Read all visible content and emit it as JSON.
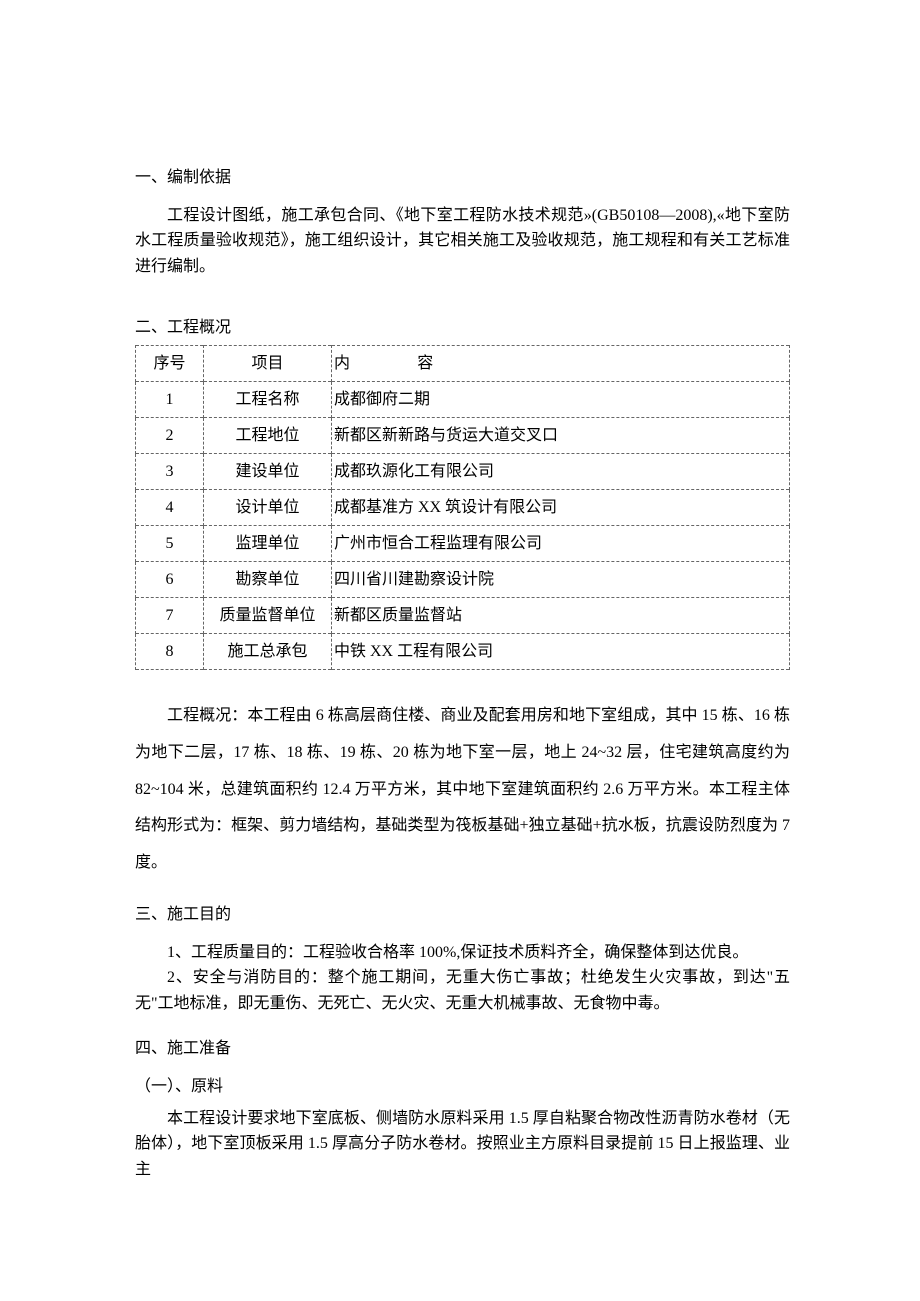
{
  "s1": {
    "heading": "一、编制依据",
    "para": "工程设计图纸，施工承包合同、《地下室工程防水技术规范»(GB50108—2008),«地下室防水工程质量验收规范》，施工组织设计，其它相关施工及验收规范，施工规程和有关工艺标准进行编制。"
  },
  "s2": {
    "heading": "二、工程概况",
    "th_seq": "序号",
    "th_item": "项目",
    "th_content_a": "内",
    "th_content_b": "容",
    "rows": [
      {
        "n": "1",
        "item": "工程名称",
        "content": "成都御府二期"
      },
      {
        "n": "2",
        "item": "工程地位",
        "content": "新都区新新路与货运大道交叉口"
      },
      {
        "n": "3",
        "item": "建设单位",
        "content": "成都玖源化工有限公司"
      },
      {
        "n": "4",
        "item": "设计单位",
        "content": "成都基准方 XX 筑设计有限公司"
      },
      {
        "n": "5",
        "item": "监理单位",
        "content": "广州市恒合工程监理有限公司"
      },
      {
        "n": "6",
        "item": "勘察单位",
        "content": "四川省川建勘察设计院"
      },
      {
        "n": "7",
        "item": "质量监督单位",
        "content": "新都区质量监督站"
      },
      {
        "n": "8",
        "item": "施工总承包",
        "content": "中铁 XX 工程有限公司"
      }
    ],
    "overview": "工程概况：本工程由 6 栋高层商住楼、商业及配套用房和地下室组成，其中 15 栋、16 栋为地下二层，17 栋、18 栋、19 栋、20 栋为地下室一层，地上 24~32 层，住宅建筑高度约为82~104 米，总建筑面积约 12.4 万平方米，其中地下室建筑面积约 2.6 万平方米。本工程主体结构形式为：框架、剪力墙结构，基础类型为筏板基础+独立基础+抗水板，抗震设防烈度为 7度。"
  },
  "s3": {
    "heading": "三、施工目的",
    "li1": "1、工程质量目的：工程验收合格率 100%,保证技术质料齐全，确保整体到达优良。",
    "li2": "2、安全与消防目的：整个施工期间，无重大伤亡事故；杜绝发生火灾事故，到达\"五无\"工地标准，即无重伤、无死亡、无火灾、无重大机械事故、无食物中毒。"
  },
  "s4": {
    "heading": "四、施工准备",
    "sub": "（一）、原料",
    "para": "本工程设计要求地下室底板、侧墙防水原料采用 1.5 厚自粘聚合物改性沥青防水卷材（无胎体），地下室顶板采用 1.5 厚高分子防水卷材。按照业主方原料目录提前 15 日上报监理、业主"
  }
}
